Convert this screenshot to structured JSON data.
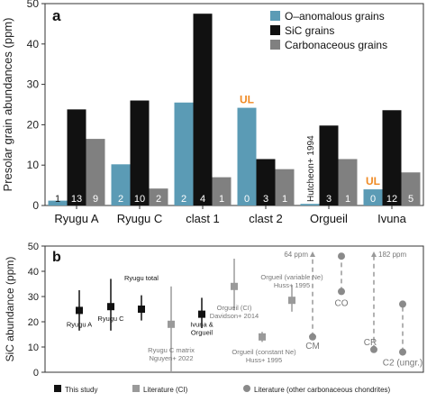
{
  "chart_data": [
    {
      "type": "bar",
      "panel_label": "a",
      "ylabel": "Presolar grain abundances (ppm)",
      "ylim": [
        0,
        50
      ],
      "yticks": [
        "0",
        "10",
        "20",
        "30",
        "40",
        "50"
      ],
      "categories": [
        "Ryugu A",
        "Ryugu C",
        "clast 1",
        "clast 2",
        "Orgueil",
        "Ivuna"
      ],
      "series": [
        {
          "name": "O–anomalous grains",
          "color": "#5b9bb5",
          "values": [
            1.2,
            10.2,
            25.5,
            24.2,
            0.4,
            4.0
          ],
          "counts": [
            "1",
            "2",
            "2",
            "0",
            "",
            "0"
          ]
        },
        {
          "name": "SiC grains",
          "color": "#111111",
          "values": [
            23.8,
            26.0,
            47.5,
            11.5,
            19.8,
            23.6
          ],
          "counts": [
            "13",
            "10",
            "4",
            "3",
            "3",
            "12"
          ]
        },
        {
          "name": "Carbonaceous grains",
          "color": "#808080",
          "values": [
            16.5,
            4.2,
            7.0,
            9.0,
            11.5,
            8.2
          ],
          "counts": [
            "9",
            "2",
            "1",
            "1",
            "1",
            "5"
          ]
        }
      ],
      "annotations": [
        {
          "text": "UL",
          "category": "clast 2",
          "color": "#f08a24"
        },
        {
          "text": "UL",
          "category": "Ivuna",
          "color": "#f08a24"
        },
        {
          "text": "Hutcheon+ 1994",
          "category": "Orgueil",
          "rotated": true
        }
      ],
      "legend_position": "top-right"
    },
    {
      "type": "scatter",
      "panel_label": "b",
      "ylabel": "SiC abundance (ppm)",
      "ylim": [
        0,
        50
      ],
      "yticks": [
        "0",
        "10",
        "20",
        "30",
        "40",
        "50"
      ],
      "points": [
        {
          "label": "Ryugu A",
          "y": 24.5,
          "err_low": 16.5,
          "err_high": 32.5,
          "group": "this_study"
        },
        {
          "label": "Ryugu C",
          "y": 26.0,
          "err_low": 16.5,
          "err_high": 37.0,
          "group": "this_study"
        },
        {
          "label": "Ryugu total",
          "y": 25.0,
          "err_low": 20.5,
          "err_high": 30.5,
          "group": "this_study"
        },
        {
          "label": "Ryugu C matrix\nNguyen+ 2022",
          "y": 19.0,
          "err_low": 0.0,
          "err_high": 34.0,
          "group": "literature_ci"
        },
        {
          "label": "Ivuna &\nOrgueil",
          "y": 23.0,
          "err_low": 17.5,
          "err_high": 29.5,
          "group": "this_study"
        },
        {
          "label": "Orgueil (CI)\nDavidson+ 2014",
          "y": 34.0,
          "err_low": 24.5,
          "err_high": 45.0,
          "group": "literature_ci"
        },
        {
          "label": "Orgueil (constant Ne)\nHuss+ 1995",
          "y": 14.0,
          "err_low": 12.0,
          "err_high": 16.0,
          "group": "literature_ci"
        },
        {
          "label": "Orgueil (variable Ne)\nHuss+ 1995",
          "y": 28.5,
          "err_low": 24.0,
          "err_high": 34.5,
          "group": "literature_ci"
        }
      ],
      "ranges": [
        {
          "label": "CM",
          "low": 14.0,
          "high": 50.0,
          "arrow": true,
          "arrow_label": "64 ppm"
        },
        {
          "label": "CO",
          "low": 32.0,
          "high": 46.0,
          "arrow": false
        },
        {
          "label": "CR",
          "low": 9.0,
          "high": 50.0,
          "arrow": true,
          "arrow_label": "182 ppm"
        },
        {
          "label": "C2 (ungr.)",
          "low": 8.0,
          "high": 27.0,
          "arrow": false
        }
      ],
      "legend": [
        {
          "label": "This study",
          "color": "#111111"
        },
        {
          "label": "Literature (CI)",
          "color": "#9a9a9a"
        },
        {
          "label": "Literature (other carbonaceous chondrites)",
          "color": "#8a8a8a"
        }
      ],
      "legend_position": "bottom"
    }
  ]
}
